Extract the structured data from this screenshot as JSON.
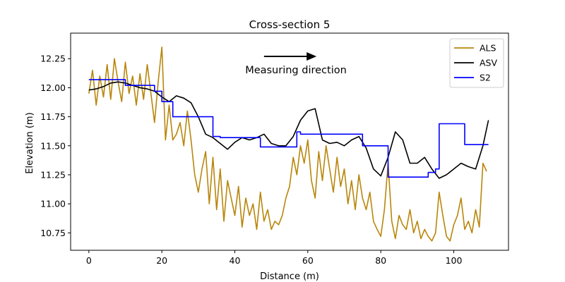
{
  "chart_data": {
    "type": "line",
    "title": "Cross-section 5",
    "xlabel": "Distance (m)",
    "ylabel": "Elevation (m)",
    "xlim": [
      -5,
      115
    ],
    "ylim": [
      10.6,
      12.47
    ],
    "xticks": [
      0,
      20,
      40,
      60,
      80,
      100
    ],
    "xtick_labels": [
      "0",
      "20",
      "40",
      "60",
      "80",
      "100"
    ],
    "yticks": [
      10.75,
      11.0,
      11.25,
      11.5,
      11.75,
      12.0,
      12.25
    ],
    "ytick_labels": [
      "10.75",
      "11.00",
      "11.25",
      "11.50",
      "11.75",
      "12.00",
      "12.25"
    ],
    "grid": false,
    "legend_position": "upper right",
    "annotation": {
      "text": "Measuring direction",
      "arrow_from": [
        48,
        12.27
      ],
      "arrow_to": [
        62,
        12.27
      ]
    },
    "series": [
      {
        "name": "ALS",
        "color": "#b8860b",
        "x": [
          0,
          1,
          2,
          3,
          4,
          5,
          6,
          7,
          8,
          9,
          10,
          11,
          12,
          13,
          14,
          15,
          16,
          17,
          18,
          19,
          20,
          21,
          22,
          23,
          24,
          25,
          26,
          27,
          28,
          29,
          30,
          31,
          32,
          33,
          34,
          35,
          36,
          37,
          38,
          39,
          40,
          41,
          42,
          43,
          44,
          45,
          46,
          47,
          48,
          49,
          50,
          51,
          52,
          53,
          54,
          55,
          56,
          57,
          58,
          59,
          60,
          61,
          62,
          63,
          64,
          65,
          66,
          67,
          68,
          69,
          70,
          71,
          72,
          73,
          74,
          75,
          76,
          77,
          78,
          79,
          80,
          81,
          82,
          83,
          84,
          85,
          86,
          87,
          88,
          89,
          90,
          91,
          92,
          93,
          94,
          95,
          96,
          97,
          98,
          99,
          100,
          101,
          102,
          103,
          104,
          105,
          106,
          107,
          108,
          109
        ],
        "y": [
          11.95,
          12.15,
          11.85,
          12.1,
          11.92,
          12.2,
          11.9,
          12.25,
          12.05,
          11.88,
          12.22,
          11.95,
          12.1,
          11.85,
          12.12,
          11.9,
          12.2,
          11.95,
          11.7,
          12.05,
          12.35,
          11.55,
          11.85,
          11.55,
          11.6,
          11.7,
          11.5,
          11.8,
          11.55,
          11.25,
          11.1,
          11.3,
          11.45,
          11.0,
          11.4,
          10.95,
          11.3,
          10.85,
          11.2,
          11.05,
          10.9,
          11.15,
          10.8,
          11.05,
          10.9,
          11.0,
          10.78,
          11.1,
          10.85,
          10.95,
          10.78,
          10.85,
          10.82,
          10.9,
          11.05,
          11.15,
          11.4,
          11.25,
          11.5,
          11.35,
          11.55,
          11.2,
          11.05,
          11.45,
          11.2,
          11.5,
          11.3,
          11.1,
          11.4,
          11.15,
          11.3,
          11.0,
          11.2,
          10.95,
          11.25,
          11.05,
          10.95,
          11.1,
          10.85,
          10.78,
          10.72,
          10.95,
          11.35,
          10.85,
          10.7,
          10.9,
          10.82,
          10.78,
          10.95,
          10.75,
          10.85,
          10.7,
          10.78,
          10.72,
          10.68,
          10.75,
          11.1,
          10.9,
          10.72,
          10.68,
          10.82,
          10.9,
          11.05,
          10.78,
          10.85,
          10.75,
          10.95,
          10.8,
          11.35,
          11.28
        ]
      },
      {
        "name": "ASV",
        "color": "#000000",
        "x": [
          0,
          2,
          4,
          6,
          8,
          10,
          12,
          14,
          16,
          18,
          20,
          22,
          24,
          26,
          28,
          30,
          32,
          34,
          36,
          38,
          40,
          42,
          44,
          46,
          48,
          50,
          52,
          54,
          56,
          58,
          60,
          62,
          64,
          66,
          68,
          70,
          72,
          74,
          76,
          78,
          80,
          82,
          84,
          86,
          88,
          90,
          92,
          94,
          96,
          98,
          100,
          102,
          104,
          106,
          108,
          109.5
        ],
        "y": [
          11.98,
          11.99,
          12.01,
          12.04,
          12.05,
          12.04,
          12.02,
          12.0,
          11.99,
          11.97,
          11.92,
          11.88,
          11.93,
          11.91,
          11.87,
          11.75,
          11.6,
          11.57,
          11.52,
          11.47,
          11.53,
          11.57,
          11.55,
          11.57,
          11.6,
          11.52,
          11.5,
          11.5,
          11.58,
          11.72,
          11.8,
          11.82,
          11.55,
          11.52,
          11.53,
          11.5,
          11.55,
          11.58,
          11.48,
          11.3,
          11.24,
          11.4,
          11.62,
          11.55,
          11.35,
          11.35,
          11.4,
          11.3,
          11.22,
          11.25,
          11.3,
          11.35,
          11.32,
          11.3,
          11.5,
          11.72
        ]
      },
      {
        "name": "S2",
        "color": "#0000ff",
        "x": [
          0,
          10,
          10,
          18,
          18,
          20,
          20,
          23,
          23,
          34,
          34,
          36,
          36,
          47,
          47,
          57,
          57,
          58,
          58,
          75,
          75,
          80,
          80,
          82,
          82,
          93,
          93,
          95,
          95,
          96,
          96,
          103,
          103,
          109.5
        ],
        "y": [
          12.07,
          12.07,
          12.02,
          12.02,
          11.97,
          11.97,
          11.88,
          11.88,
          11.75,
          11.75,
          11.58,
          11.58,
          11.57,
          11.57,
          11.49,
          11.49,
          11.62,
          11.62,
          11.6,
          11.6,
          11.5,
          11.5,
          11.5,
          11.5,
          11.23,
          11.23,
          11.27,
          11.27,
          11.3,
          11.3,
          11.69,
          11.69,
          11.51,
          11.51
        ]
      }
    ]
  }
}
